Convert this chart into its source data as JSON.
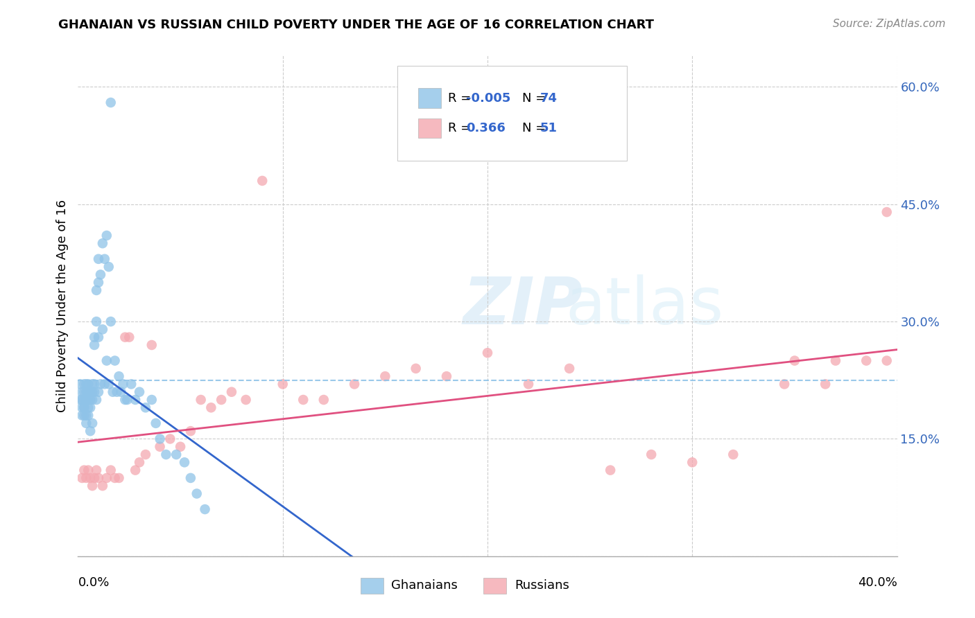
{
  "title": "GHANAIAN VS RUSSIAN CHILD POVERTY UNDER THE AGE OF 16 CORRELATION CHART",
  "source": "Source: ZipAtlas.com",
  "ylabel": "Child Poverty Under the Age of 16",
  "yticks": [
    0.0,
    0.15,
    0.3,
    0.45,
    0.6
  ],
  "ytick_labels": [
    "",
    "15.0%",
    "30.0%",
    "45.0%",
    "60.0%"
  ],
  "xlim": [
    0.0,
    0.4
  ],
  "ylim": [
    0.0,
    0.64
  ],
  "blue_color": "#8fc3e8",
  "pink_color": "#f4a8b0",
  "blue_line_color": "#3366cc",
  "pink_line_color": "#e05080",
  "dashed_line_color": "#8fc3e8",
  "background_color": "#ffffff",
  "watermark_zip": "ZIP",
  "watermark_atlas": "atlas",
  "ghanaian_x": [
    0.001,
    0.001,
    0.002,
    0.002,
    0.002,
    0.002,
    0.003,
    0.003,
    0.003,
    0.003,
    0.003,
    0.003,
    0.004,
    0.004,
    0.004,
    0.004,
    0.004,
    0.005,
    0.005,
    0.005,
    0.005,
    0.005,
    0.006,
    0.006,
    0.006,
    0.006,
    0.007,
    0.007,
    0.007,
    0.007,
    0.008,
    0.008,
    0.008,
    0.008,
    0.009,
    0.009,
    0.009,
    0.01,
    0.01,
    0.01,
    0.01,
    0.011,
    0.011,
    0.012,
    0.012,
    0.013,
    0.013,
    0.014,
    0.014,
    0.015,
    0.015,
    0.016,
    0.016,
    0.017,
    0.018,
    0.019,
    0.02,
    0.021,
    0.022,
    0.023,
    0.024,
    0.026,
    0.028,
    0.03,
    0.033,
    0.036,
    0.038,
    0.04,
    0.043,
    0.048,
    0.052,
    0.055,
    0.058,
    0.062
  ],
  "ghanaian_y": [
    0.22,
    0.2,
    0.21,
    0.2,
    0.19,
    0.18,
    0.22,
    0.21,
    0.2,
    0.19,
    0.19,
    0.18,
    0.22,
    0.21,
    0.2,
    0.18,
    0.17,
    0.22,
    0.21,
    0.2,
    0.19,
    0.18,
    0.21,
    0.2,
    0.19,
    0.16,
    0.22,
    0.21,
    0.2,
    0.17,
    0.22,
    0.28,
    0.27,
    0.21,
    0.34,
    0.3,
    0.2,
    0.38,
    0.35,
    0.28,
    0.21,
    0.36,
    0.22,
    0.4,
    0.29,
    0.38,
    0.22,
    0.41,
    0.25,
    0.37,
    0.22,
    0.58,
    0.3,
    0.21,
    0.25,
    0.21,
    0.23,
    0.21,
    0.22,
    0.2,
    0.2,
    0.22,
    0.2,
    0.21,
    0.19,
    0.2,
    0.17,
    0.15,
    0.13,
    0.13,
    0.12,
    0.1,
    0.08,
    0.06
  ],
  "russian_x": [
    0.002,
    0.003,
    0.004,
    0.005,
    0.006,
    0.007,
    0.008,
    0.009,
    0.01,
    0.012,
    0.014,
    0.016,
    0.018,
    0.02,
    0.023,
    0.025,
    0.028,
    0.03,
    0.033,
    0.036,
    0.04,
    0.045,
    0.05,
    0.055,
    0.06,
    0.065,
    0.07,
    0.075,
    0.082,
    0.09,
    0.1,
    0.11,
    0.12,
    0.135,
    0.15,
    0.165,
    0.18,
    0.2,
    0.22,
    0.24,
    0.26,
    0.28,
    0.3,
    0.32,
    0.345,
    0.365,
    0.385,
    0.395,
    0.37,
    0.35,
    0.395
  ],
  "russian_y": [
    0.1,
    0.11,
    0.1,
    0.11,
    0.1,
    0.09,
    0.1,
    0.11,
    0.1,
    0.09,
    0.1,
    0.11,
    0.1,
    0.1,
    0.28,
    0.28,
    0.11,
    0.12,
    0.13,
    0.27,
    0.14,
    0.15,
    0.14,
    0.16,
    0.2,
    0.19,
    0.2,
    0.21,
    0.2,
    0.48,
    0.22,
    0.2,
    0.2,
    0.22,
    0.23,
    0.24,
    0.23,
    0.26,
    0.22,
    0.24,
    0.11,
    0.13,
    0.12,
    0.13,
    0.22,
    0.22,
    0.25,
    0.44,
    0.25,
    0.25,
    0.25
  ]
}
